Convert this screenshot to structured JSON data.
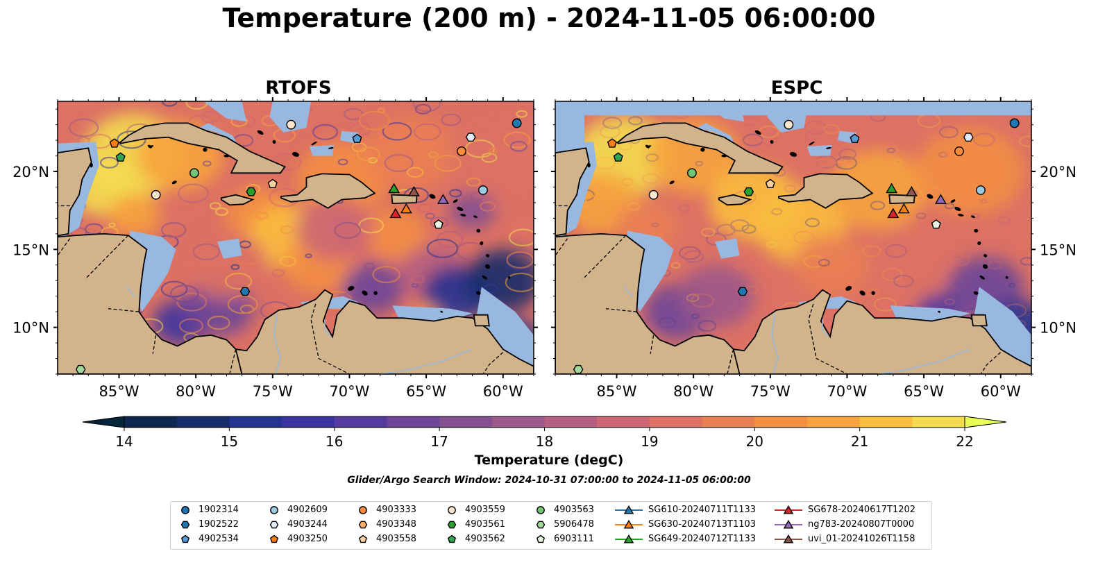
{
  "title": "Temperature (200 m) - 2024-11-05 06:00:00",
  "panels": [
    {
      "title": "RTOFS",
      "style": "rtofs"
    },
    {
      "title": "ESPC",
      "style": "espc"
    }
  ],
  "map": {
    "lon_range": [
      -89,
      -58
    ],
    "lat_range": [
      7,
      24.5
    ],
    "lon_ticks": [
      {
        "value": -85,
        "label": "85°W"
      },
      {
        "value": -80,
        "label": "80°W"
      },
      {
        "value": -75,
        "label": "75°W"
      },
      {
        "value": -70,
        "label": "70°W"
      },
      {
        "value": -65,
        "label": "65°W"
      },
      {
        "value": -60,
        "label": "60°W"
      }
    ],
    "lat_ticks": [
      {
        "value": 20,
        "label": "20°N"
      },
      {
        "value": 15,
        "label": "15°N"
      },
      {
        "value": 10,
        "label": "10°N"
      }
    ],
    "land_color": "#d2b48c",
    "shelf_color": "#99b8e0",
    "coast_color": "#000000"
  },
  "colorbar": {
    "label": "Temperature (degC)",
    "min": 14,
    "max": 22,
    "step": 0.5,
    "ticks": [
      "14",
      "15",
      "16",
      "17",
      "18",
      "19",
      "20",
      "21",
      "22"
    ],
    "colors": [
      "#0e2750",
      "#172d6b",
      "#253390",
      "#3b34a0",
      "#553b9f",
      "#6c4598",
      "#845090",
      "#9c5889",
      "#b55e80",
      "#cc6673",
      "#dc7164",
      "#ea7f53",
      "#f38e42",
      "#f6a33d",
      "#f9bd3e",
      "#f3dc4f"
    ],
    "under_color": "#05263a",
    "over_color": "#e9ff56"
  },
  "search_window": "Glider/Argo Search Window: 2024-10-31 07:00:00 to 2024-11-05 06:00:00",
  "legend": [
    {
      "label": "1902314",
      "marker": "circle",
      "color": "#1f77b4"
    },
    {
      "label": "1902522",
      "marker": "hexagon",
      "color": "#1f77b4"
    },
    {
      "label": "4902534",
      "marker": "pentagon",
      "color": "#5b9bd5"
    },
    {
      "label": "4902609",
      "marker": "circle",
      "color": "#9ecae1"
    },
    {
      "label": "4903244",
      "marker": "hexagon",
      "color": "#deebf7"
    },
    {
      "label": "4903250",
      "marker": "pentagon",
      "color": "#ff7f0e"
    },
    {
      "label": "4903333",
      "marker": "circle",
      "color": "#fd8d3c"
    },
    {
      "label": "4903348",
      "marker": "hexagon",
      "color": "#fdae6b"
    },
    {
      "label": "4903558",
      "marker": "pentagon",
      "color": "#fdd0a2"
    },
    {
      "label": "4903559",
      "marker": "circle",
      "color": "#fee6ce"
    },
    {
      "label": "4903561",
      "marker": "hexagon",
      "color": "#2ca02c"
    },
    {
      "label": "4903562",
      "marker": "pentagon",
      "color": "#31a354"
    },
    {
      "label": "4903563",
      "marker": "circle",
      "color": "#74c476"
    },
    {
      "label": "5906478",
      "marker": "hexagon",
      "color": "#a1d99b"
    },
    {
      "label": "6903111",
      "marker": "pentagon",
      "color": "#e5f5e0"
    },
    {
      "label": "SG610-20240711T1133",
      "marker": "triangle",
      "color": "#1f77b4",
      "line": true
    },
    {
      "label": "SG630-20240713T1103",
      "marker": "triangle",
      "color": "#ff7f0e",
      "line": true
    },
    {
      "label": "SG649-20240712T1133",
      "marker": "triangle",
      "color": "#2ca02c",
      "line": true
    },
    {
      "label": "SG678-20240617T1202",
      "marker": "triangle",
      "color": "#d62728",
      "line": true
    },
    {
      "label": "ng783-20240807T0000",
      "marker": "triangle",
      "color": "#9467bd",
      "line": true
    },
    {
      "label": "uvi_01-20241026T1158",
      "marker": "triangle",
      "color": "#8c564b",
      "line": true
    }
  ],
  "observations": [
    {
      "id": "1902314",
      "lon": -59.1,
      "lat": 23.1
    },
    {
      "id": "4903244",
      "lon": -62.1,
      "lat": 22.2
    },
    {
      "id": "4902534",
      "lon": -69.5,
      "lat": 22.1
    },
    {
      "id": "4903559",
      "lon": -73.8,
      "lat": 23.0
    },
    {
      "id": "4903333",
      "lon": -62.7,
      "lat": 21.3
    },
    {
      "id": "4903250",
      "lon": -85.3,
      "lat": 21.8
    },
    {
      "id": "4903562",
      "lon": -84.9,
      "lat": 20.9
    },
    {
      "id": "4903563",
      "lon": -80.1,
      "lat": 19.9
    },
    {
      "id": "4903558",
      "lon": -75.0,
      "lat": 19.2
    },
    {
      "id": "4903561",
      "lon": -76.4,
      "lat": 18.7
    },
    {
      "id": "4903559",
      "lon": -82.6,
      "lat": 18.5
    },
    {
      "id": "4902609",
      "lon": -61.3,
      "lat": 18.8
    },
    {
      "id": "6903111",
      "lon": -64.2,
      "lat": 16.6
    },
    {
      "id": "1902522",
      "lon": -76.8,
      "lat": 12.3
    },
    {
      "id": "5906478",
      "lon": -87.5,
      "lat": 7.3
    },
    {
      "id": "SG649-20240712T1133",
      "lon": -67.1,
      "lat": 18.9
    },
    {
      "id": "uvi_01-20241026T1158",
      "lon": -65.8,
      "lat": 18.7
    },
    {
      "id": "ng783-20240807T0000",
      "lon": -63.9,
      "lat": 18.2
    },
    {
      "id": "SG630-20240713T1103",
      "lon": -66.3,
      "lat": 17.6
    },
    {
      "id": "SG678-20240617T1202",
      "lon": -67.0,
      "lat": 17.3
    }
  ]
}
